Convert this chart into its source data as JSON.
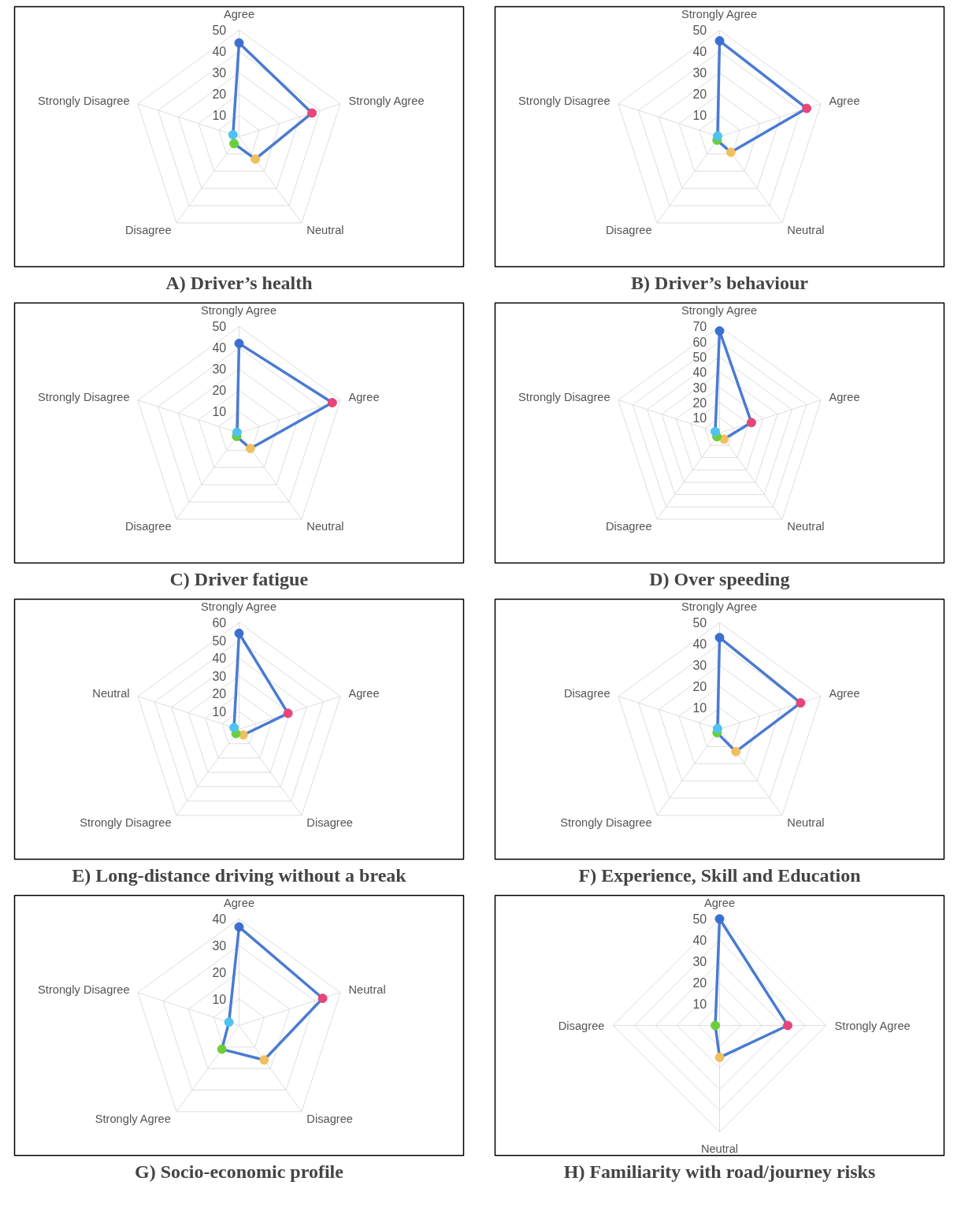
{
  "chart_data": [
    {
      "type": "radar",
      "title": "A) Driver’s health",
      "categories": [
        "Agree",
        "Strongly Agree",
        "Neutral",
        "Disagree",
        "Strongly Disagree"
      ],
      "ylim": [
        0,
        50
      ],
      "yticks": [
        10,
        20,
        30,
        40,
        50
      ],
      "grid": true,
      "marker": "circle",
      "colors": [
        "#3b6fd0",
        "#e8457a",
        "#f0c060",
        "#6ccf3a",
        "#4fc3f0"
      ],
      "series": [
        {
          "color": "#4a7bd0",
          "values": [
            44,
            36,
            13,
            4,
            3
          ]
        }
      ]
    },
    {
      "type": "radar",
      "title": "B) Driver’s behaviour",
      "categories": [
        "Strongly Agree",
        "Agree",
        "Neutral",
        "Disagree",
        "Strongly Disagree"
      ],
      "ylim": [
        0,
        50
      ],
      "yticks": [
        10,
        20,
        30,
        40,
        50
      ],
      "grid": true,
      "marker": "circle",
      "colors": [
        "#3b6fd0",
        "#e8457a",
        "#f0c060",
        "#6ccf3a",
        "#4fc3f0"
      ],
      "series": [
        {
          "color": "#4a7bd0",
          "values": [
            45,
            43,
            9,
            2,
            1
          ]
        }
      ]
    },
    {
      "type": "radar",
      "title": "C) Driver fatigue",
      "categories": [
        "Strongly Agree",
        "Agree",
        "Neutral",
        "Disagree",
        "Strongly Disagree"
      ],
      "ylim": [
        0,
        50
      ],
      "yticks": [
        10,
        20,
        30,
        40,
        50
      ],
      "grid": true,
      "marker": "circle",
      "colors": [
        "#3b6fd0",
        "#e8457a",
        "#f0c060",
        "#6ccf3a",
        "#4fc3f0"
      ],
      "series": [
        {
          "color": "#4a7bd0",
          "values": [
            42,
            46,
            9,
            2,
            1
          ]
        }
      ]
    },
    {
      "type": "radar",
      "title": "D) Over speeding",
      "categories": [
        "Strongly Agree",
        "Agree",
        "Neutral",
        "Disagree",
        "Strongly Disagree"
      ],
      "ylim": [
        0,
        70
      ],
      "yticks": [
        10,
        20,
        30,
        40,
        50,
        60,
        70
      ],
      "grid": true,
      "marker": "circle",
      "colors": [
        "#3b6fd0",
        "#e8457a",
        "#f0c060",
        "#6ccf3a",
        "#4fc3f0"
      ],
      "series": [
        {
          "color": "#4a7bd0",
          "values": [
            67,
            22,
            5,
            3,
            3
          ]
        }
      ]
    },
    {
      "type": "radar",
      "title": "E) Long-distance driving without a break",
      "categories": [
        "Strongly Agree",
        "Agree",
        "Disagree",
        "Strongly Disagree",
        "Neutral"
      ],
      "ylim": [
        0,
        60
      ],
      "yticks": [
        10,
        20,
        30,
        40,
        50,
        60
      ],
      "grid": true,
      "marker": "circle",
      "colors": [
        "#3b6fd0",
        "#e8457a",
        "#f0c060",
        "#6ccf3a",
        "#4fc3f0"
      ],
      "series": [
        {
          "color": "#4a7bd0",
          "values": [
            54,
            29,
            4,
            3,
            3
          ]
        }
      ]
    },
    {
      "type": "radar",
      "title": "F) Experience, Skill and Education",
      "categories": [
        "Strongly Agree",
        "Agree",
        "Neutral",
        "Strongly Disagree",
        "Disagree"
      ],
      "ylim": [
        0,
        50
      ],
      "yticks": [
        10,
        20,
        30,
        40,
        50
      ],
      "grid": true,
      "marker": "circle",
      "colors": [
        "#3b6fd0",
        "#e8457a",
        "#f0c060",
        "#6ccf3a",
        "#4fc3f0"
      ],
      "series": [
        {
          "color": "#4a7bd0",
          "values": [
            43,
            40,
            13,
            2,
            1
          ]
        }
      ]
    },
    {
      "type": "radar",
      "title": "G) Socio-economic profile",
      "categories": [
        "Agree",
        "Neutral",
        "Disagree",
        "Strongly Agree",
        "Strongly Disagree"
      ],
      "ylim": [
        0,
        40
      ],
      "yticks": [
        10,
        20,
        30,
        40
      ],
      "grid": true,
      "marker": "circle",
      "colors": [
        "#3b6fd0",
        "#e8457a",
        "#f0c060",
        "#6ccf3a",
        "#4fc3f0"
      ],
      "series": [
        {
          "color": "#4a7bd0",
          "values": [
            37,
            33,
            16,
            11,
            4
          ]
        }
      ]
    },
    {
      "type": "radar",
      "title": "H) Familiarity with road/journey risks",
      "categories": [
        "Agree",
        "Strongly Agree",
        "Neutral",
        "Disagree"
      ],
      "ylim": [
        0,
        50
      ],
      "yticks": [
        10,
        20,
        30,
        40,
        50
      ],
      "grid": true,
      "marker": "circle",
      "colors": [
        "#3b6fd0",
        "#e8457a",
        "#f0c060",
        "#6ccf3a"
      ],
      "series": [
        {
          "color": "#4a7bd0",
          "values": [
            50,
            32,
            15,
            2
          ]
        }
      ]
    }
  ]
}
